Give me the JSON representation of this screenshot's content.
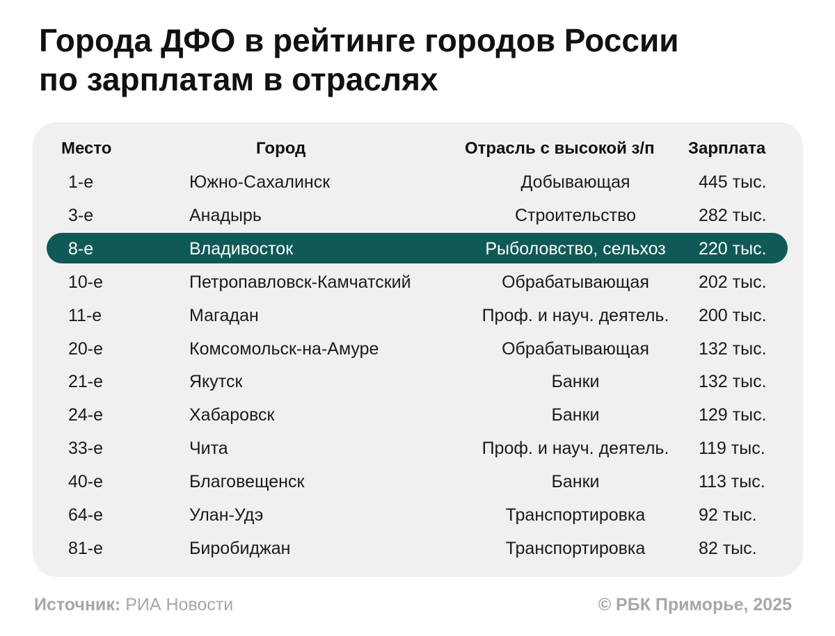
{
  "title_line1": "Города ДФО в рейтинге городов России",
  "title_line2": "по зарплатам в отраслях",
  "footer": {
    "source_label": "Источник:",
    "source_value": "РИА Новости",
    "copyright": "© РБК Приморье, 2025"
  },
  "colors": {
    "highlight": "#0f5a56",
    "card_background": "#f0f0f0",
    "footer_text": "#a7a7a7"
  },
  "chart_data": {
    "type": "table",
    "title": "Города ДФО в рейтинге городов России по зарплатам в отраслях",
    "columns": [
      "Место",
      "Город",
      "Отрасль с высокой з/п",
      "Зарплата"
    ],
    "highlighted_row": 2,
    "rows": [
      [
        "1-е",
        "Южно-Сахалинск",
        "Добывающая",
        "445 тыс."
      ],
      [
        "3-е",
        "Анадырь",
        "Строительство",
        "282 тыс."
      ],
      [
        "8-е",
        "Владивосток",
        "Рыболовство, сельхоз",
        "220 тыс."
      ],
      [
        "10-е",
        "Петропавловск-Камчатский",
        "Обрабатывающая",
        "202 тыс."
      ],
      [
        "11-е",
        "Магадан",
        "Проф. и науч. деятель.",
        "200 тыс."
      ],
      [
        "20-е",
        "Комсомольск-на-Амуре",
        "Обрабатывающая",
        "132 тыс."
      ],
      [
        "21-е",
        "Якутск",
        "Банки",
        "132 тыс."
      ],
      [
        "24-е",
        "Хабаровск",
        "Банки",
        "129 тыс."
      ],
      [
        "33-е",
        "Чита",
        "Проф. и науч. деятель.",
        "119 тыс."
      ],
      [
        "40-е",
        "Благовещенск",
        "Банки",
        "113 тыс."
      ],
      [
        "64-е",
        "Улан-Удэ",
        "Транспортировка",
        "92 тыс."
      ],
      [
        "81-е",
        "Биробиджан",
        "Транспортировка",
        "82 тыс."
      ]
    ]
  }
}
